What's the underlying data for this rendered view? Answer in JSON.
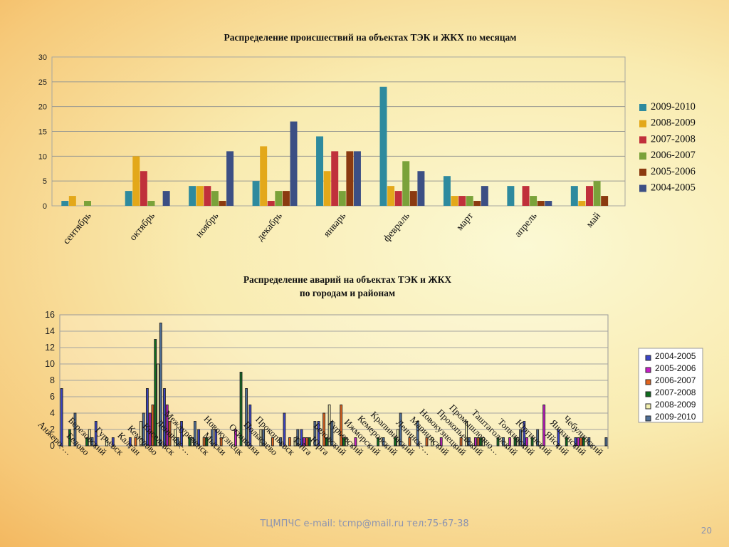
{
  "slide": {
    "footer": "ТЦМПЧС e-mail: tcmp@mail.ru тел:75-67-38",
    "page_number": "20"
  },
  "chart_data": [
    {
      "type": "bar",
      "title": "Распределение происшествий на объектах ТЭК и ЖКХ по месяцам",
      "categories": [
        "сентябрь",
        "октябрь",
        "ноябрь",
        "декабрь",
        "январь",
        "февраль",
        "март",
        "апрель",
        "май"
      ],
      "ylim": [
        0,
        30
      ],
      "yticks": [
        0,
        5,
        10,
        15,
        20,
        25,
        30
      ],
      "grid": true,
      "legend_position": "right",
      "series": [
        {
          "name": "2009-2010",
          "color": "#2e8a9e",
          "values": [
            1,
            3,
            4,
            5,
            14,
            24,
            6,
            4,
            4
          ]
        },
        {
          "name": "2008-2009",
          "color": "#e3a81a",
          "values": [
            2,
            10,
            4,
            12,
            7,
            4,
            2,
            0,
            1
          ]
        },
        {
          "name": "2007-2008",
          "color": "#c0303b",
          "values": [
            0,
            7,
            4,
            1,
            11,
            3,
            2,
            4,
            4
          ]
        },
        {
          "name": "2006-2007",
          "color": "#7aa23a",
          "values": [
            1,
            1,
            3,
            3,
            3,
            9,
            2,
            2,
            5
          ]
        },
        {
          "name": "2005-2006",
          "color": "#8b3a10",
          "values": [
            0,
            0,
            1,
            3,
            11,
            3,
            1,
            1,
            2
          ]
        },
        {
          "name": "2004-2005",
          "color": "#3c4f84",
          "values": [
            0,
            3,
            11,
            17,
            11,
            7,
            4,
            1,
            0
          ]
        }
      ]
    },
    {
      "type": "bar",
      "title": "Распределение аварий на объектах ТЭК и ЖКХ по городам и районам",
      "categories": [
        "Анжеро-…",
        "Белово",
        "Березовский",
        "Гурьевск",
        "Калтан",
        "Кемерово",
        "Киселевск",
        "Ленинск-…",
        "Междуреченск",
        "Мыски",
        "Новокузнецк",
        "Осинники",
        "Полысаево",
        "Прокопьевск",
        "Тайга",
        "Юрга",
        "Беловский",
        "Гурьевский",
        "Ижморский",
        "Кемеровский",
        "Крапивинский",
        "Ленинск-…",
        "Мариинский",
        "Новокузнецкий",
        "Прокопьевский",
        "Промышленно…",
        "Таштагольский",
        "Топкинский",
        "Юргинский",
        "Яйский",
        "Яшкинский",
        "Чебулинский"
      ],
      "ylim": [
        0,
        16
      ],
      "yticks": [
        0,
        2,
        4,
        6,
        8,
        10,
        12,
        14,
        16
      ],
      "grid": true,
      "legend_position": "right",
      "series": [
        {
          "name": "2004-2005",
          "color": "#3b44c8",
          "values": [
            7,
            0,
            3,
            1,
            1,
            7,
            7,
            3,
            2,
            2,
            0,
            5,
            0,
            4,
            2,
            3,
            0,
            0,
            0,
            0,
            0,
            0,
            0,
            0,
            0,
            0,
            0,
            3,
            0,
            2,
            1,
            0
          ]
        },
        {
          "name": "2005-2006",
          "color": "#c81ec8",
          "values": [
            0,
            0,
            0,
            0,
            0,
            4,
            5,
            0,
            0,
            0,
            2,
            0,
            0,
            0,
            1,
            0,
            0,
            1,
            0,
            0,
            0,
            0,
            1,
            0,
            1,
            0,
            1,
            1,
            5,
            0,
            1,
            0
          ]
        },
        {
          "name": "2006-2007",
          "color": "#e3641e",
          "values": [
            0,
            0,
            0,
            0,
            1,
            5,
            3,
            0,
            1,
            1,
            0,
            0,
            1,
            1,
            1,
            4,
            5,
            0,
            0,
            0,
            1,
            1,
            0,
            1,
            1,
            0,
            0,
            0,
            0,
            0,
            1,
            0
          ]
        },
        {
          "name": "2007-2008",
          "color": "#0e6e1e",
          "values": [
            2,
            1,
            0,
            0,
            0,
            13,
            0,
            1,
            1,
            0,
            9,
            0,
            0,
            0,
            1,
            1,
            1,
            0,
            1,
            1,
            0,
            0,
            0,
            0,
            1,
            1,
            1,
            1,
            0,
            1,
            1,
            0
          ]
        },
        {
          "name": "2008-2009",
          "color": "#f3f0b0",
          "values": [
            0,
            2,
            1,
            0,
            3,
            10,
            2,
            1,
            0,
            0,
            0,
            2,
            0,
            1,
            0,
            5,
            1,
            0,
            0,
            2,
            0,
            1,
            0,
            3,
            1,
            0,
            1,
            0,
            0,
            0,
            0,
            0
          ]
        },
        {
          "name": "2009-2010",
          "color": "#4f6f98",
          "values": [
            4,
            1,
            0,
            0,
            4,
            15,
            1,
            3,
            2,
            0,
            7,
            2,
            1,
            2,
            3,
            3,
            0,
            0,
            1,
            4,
            3,
            0,
            0,
            1,
            0,
            1,
            2,
            2,
            0,
            0,
            1,
            1
          ]
        }
      ]
    }
  ]
}
